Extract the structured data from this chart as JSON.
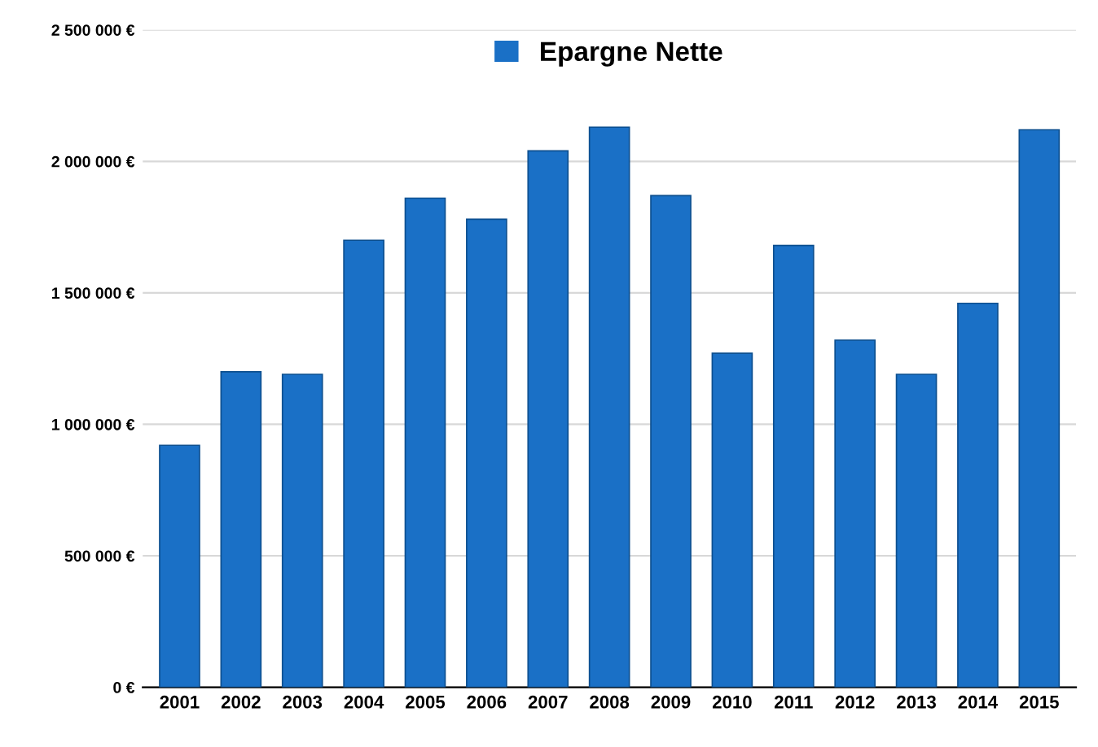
{
  "chart_data": {
    "type": "bar",
    "categories": [
      "2001",
      "2002",
      "2003",
      "2004",
      "2005",
      "2006",
      "2007",
      "2008",
      "2009",
      "2010",
      "2011",
      "2012",
      "2013",
      "2014",
      "2015"
    ],
    "series": [
      {
        "name": "Epargne Nette",
        "color": "#1a70c6",
        "values": [
          920000,
          1200000,
          1190000,
          1700000,
          1860000,
          1780000,
          2040000,
          2130000,
          1870000,
          1270000,
          1680000,
          1320000,
          1190000,
          1460000,
          2120000
        ]
      }
    ],
    "ylim": [
      0,
      2500000
    ],
    "yticks": [
      {
        "value": 0,
        "label": "0 €"
      },
      {
        "value": 500000,
        "label": "500 000 €"
      },
      {
        "value": 1000000,
        "label": "1 000 000 €"
      },
      {
        "value": 1500000,
        "label": "1 500 000 €"
      },
      {
        "value": 2000000,
        "label": "2 000 000 €"
      },
      {
        "value": 2500000,
        "label": "2 500 000 €"
      }
    ],
    "grid": "y",
    "legend": "top"
  }
}
